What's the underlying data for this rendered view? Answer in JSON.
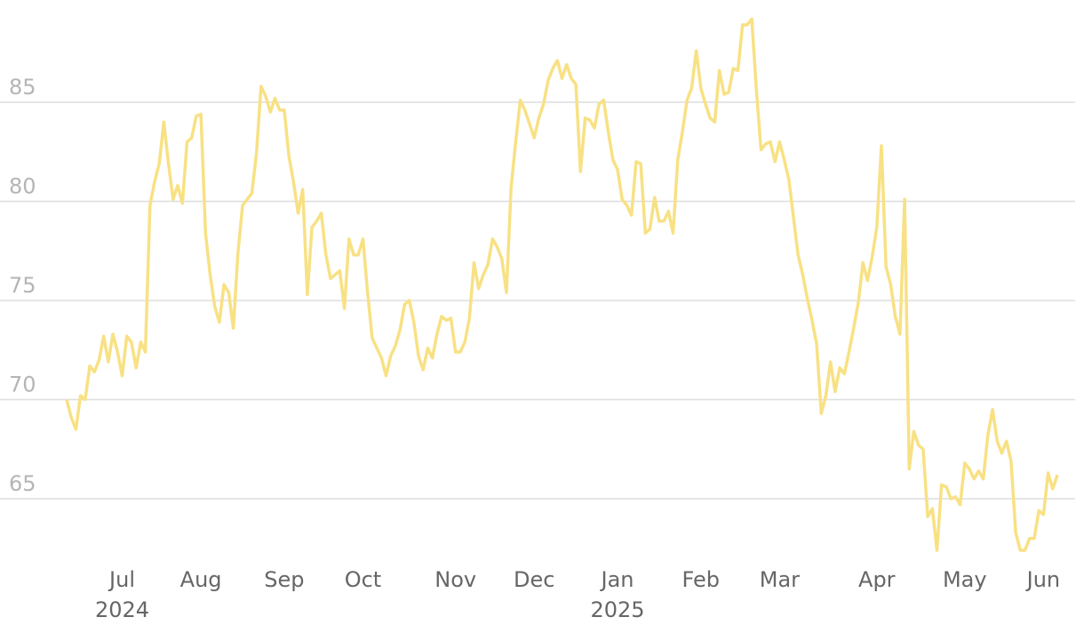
{
  "chart_data": {
    "type": "line",
    "color": "#f8e184",
    "grid": true,
    "ylim": [
      62,
      89.5
    ],
    "yticks": [
      65,
      70,
      75,
      80,
      85
    ],
    "categories": [
      null,
      null,
      null,
      null,
      null,
      null,
      null,
      null,
      null,
      null,
      null,
      null,
      "Jul",
      null,
      null,
      null,
      null,
      null,
      null,
      null,
      null,
      null,
      null,
      null,
      null,
      null,
      null,
      null,
      null,
      "Aug",
      null,
      null,
      null,
      null,
      null,
      null,
      null,
      null,
      null,
      null,
      null,
      null,
      null,
      null,
      null,
      null,
      null,
      "Sep",
      null,
      null,
      null,
      null,
      null,
      null,
      null,
      null,
      null,
      null,
      null,
      null,
      null,
      null,
      null,
      null,
      "Oct",
      null,
      null,
      null,
      null,
      null,
      null,
      null,
      null,
      null,
      null,
      null,
      null,
      null,
      null,
      null,
      null,
      null,
      null,
      null,
      "Nov",
      null,
      null,
      null,
      null,
      null,
      null,
      null,
      null,
      null,
      null,
      null,
      null,
      null,
      null,
      null,
      null,
      "Dec",
      null,
      null,
      null,
      null,
      null,
      null,
      null,
      null,
      null,
      null,
      null,
      null,
      null,
      null,
      null,
      null,
      null,
      "Jan",
      null,
      null,
      null,
      null,
      null,
      null,
      null,
      null,
      null,
      null,
      null,
      null,
      null,
      null,
      null,
      null,
      null,
      "Feb",
      null,
      null,
      null,
      null,
      null,
      null,
      null,
      null,
      null,
      null,
      null,
      null,
      null,
      null,
      null,
      null,
      "Mar",
      null,
      null,
      null,
      null,
      null,
      null,
      null,
      null,
      null,
      null,
      null,
      null,
      null,
      null,
      null,
      null,
      null,
      null,
      null,
      null,
      "Apr",
      null,
      null,
      null,
      null,
      null,
      null,
      null,
      null,
      null,
      null,
      null,
      null,
      null,
      null,
      null,
      null,
      null,
      null,
      "May",
      null,
      null,
      null,
      null,
      null,
      null,
      null,
      null,
      null,
      null,
      null,
      null,
      null,
      null,
      null,
      null,
      "Jun",
      null,
      null,
      null
    ],
    "category_years": [
      null,
      null,
      null,
      null,
      null,
      null,
      null,
      null,
      null,
      null,
      null,
      null,
      "2024",
      null,
      null,
      null,
      null,
      null,
      null,
      null,
      null,
      null,
      null,
      null,
      null,
      null,
      null,
      null,
      null,
      null,
      null,
      null,
      null,
      null,
      null,
      null,
      null,
      null,
      null,
      null,
      null,
      null,
      null,
      null,
      null,
      null,
      null,
      null,
      null,
      null,
      null,
      null,
      null,
      null,
      null,
      null,
      null,
      null,
      null,
      null,
      null,
      null,
      null,
      null,
      null,
      null,
      null,
      null,
      null,
      null,
      null,
      null,
      null,
      null,
      null,
      null,
      null,
      null,
      null,
      null,
      null,
      null,
      null,
      null,
      null,
      null,
      null,
      null,
      null,
      null,
      null,
      null,
      null,
      null,
      null,
      null,
      null,
      null,
      null,
      null,
      null,
      null,
      null,
      null,
      null,
      null,
      null,
      null,
      null,
      null,
      null,
      null,
      null,
      null,
      null,
      null,
      null,
      null,
      null,
      "2025",
      null,
      null,
      null,
      null,
      null,
      null,
      null,
      null,
      null,
      null,
      null,
      null,
      null,
      null,
      null,
      null,
      null,
      null,
      null,
      null,
      null,
      null,
      null,
      null,
      null,
      null,
      null,
      null,
      null,
      null,
      null,
      null,
      null,
      null,
      null,
      null,
      null,
      null,
      null,
      null,
      null,
      null,
      null,
      null,
      null,
      null,
      null,
      null,
      null,
      null,
      null,
      null,
      null,
      null,
      null,
      null,
      null,
      null,
      null,
      null,
      null,
      null,
      null,
      null,
      null,
      null,
      null,
      null,
      null,
      null,
      null,
      null,
      null,
      null,
      null,
      null,
      null,
      null,
      null,
      null,
      null,
      null,
      null,
      null,
      null,
      null,
      null,
      null,
      null,
      null,
      null,
      null,
      null,
      null,
      null
    ],
    "values": [
      70.0,
      69.1,
      68.5,
      70.2,
      70.0,
      71.7,
      71.4,
      72.0,
      73.2,
      71.9,
      73.3,
      72.4,
      71.2,
      73.2,
      72.9,
      71.6,
      72.9,
      72.4,
      79.8,
      81.0,
      81.9,
      84.0,
      81.9,
      80.1,
      80.8,
      79.9,
      83.0,
      83.2,
      84.3,
      84.4,
      78.4,
      76.3,
      74.7,
      73.9,
      75.8,
      75.4,
      73.6,
      77.4,
      79.8,
      80.1,
      80.4,
      82.4,
      85.8,
      85.3,
      84.5,
      85.2,
      84.6,
      84.6,
      82.3,
      81.0,
      79.4,
      80.6,
      75.3,
      78.7,
      79.0,
      79.4,
      77.3,
      76.1,
      76.3,
      76.5,
      74.6,
      78.1,
      77.3,
      77.3,
      78.1,
      75.4,
      73.1,
      72.6,
      72.1,
      71.2,
      72.2,
      72.7,
      73.5,
      74.8,
      75.0,
      73.9,
      72.2,
      71.5,
      72.6,
      72.1,
      73.3,
      74.2,
      74.0,
      74.1,
      72.4,
      72.4,
      72.9,
      74.1,
      76.9,
      75.6,
      76.3,
      76.8,
      78.1,
      77.7,
      77.1,
      75.4,
      80.7,
      83.0,
      85.1,
      84.6,
      83.9,
      83.2,
      84.2,
      84.9,
      86.1,
      86.7,
      87.1,
      86.2,
      86.9,
      86.2,
      85.9,
      81.5,
      84.2,
      84.1,
      83.7,
      84.9,
      85.1,
      83.5,
      82.1,
      81.6,
      80.1,
      79.8,
      79.3,
      82.0,
      81.9,
      78.4,
      78.6,
      80.2,
      79.0,
      79.0,
      79.5,
      78.4,
      82.1,
      83.5,
      85.1,
      85.7,
      87.6,
      85.7,
      84.9,
      84.2,
      84.0,
      86.6,
      85.4,
      85.5,
      86.7,
      86.6,
      88.9,
      88.9,
      89.2,
      85.6,
      82.6,
      82.9,
      83.0,
      82.0,
      83.0,
      82.1,
      81.1,
      79.2,
      77.3,
      76.3,
      75.1,
      74.0,
      72.8,
      69.3,
      70.2,
      71.9,
      70.4,
      71.6,
      71.3,
      72.4,
      73.6,
      74.9,
      76.9,
      76.0,
      77.2,
      78.7,
      82.8,
      76.7,
      75.8,
      74.2,
      73.3,
      80.1,
      66.5,
      68.4,
      67.7,
      67.5,
      64.1,
      64.5,
      62.4,
      65.7,
      65.6,
      65.0,
      65.1,
      64.7,
      66.8,
      66.5,
      66.0,
      66.4,
      66.0,
      68.2,
      69.5,
      67.9,
      67.3,
      67.9,
      66.9,
      63.3,
      62.4,
      62.4,
      63.0,
      63.0,
      64.4,
      64.2,
      66.3,
      65.5,
      66.2
    ]
  }
}
